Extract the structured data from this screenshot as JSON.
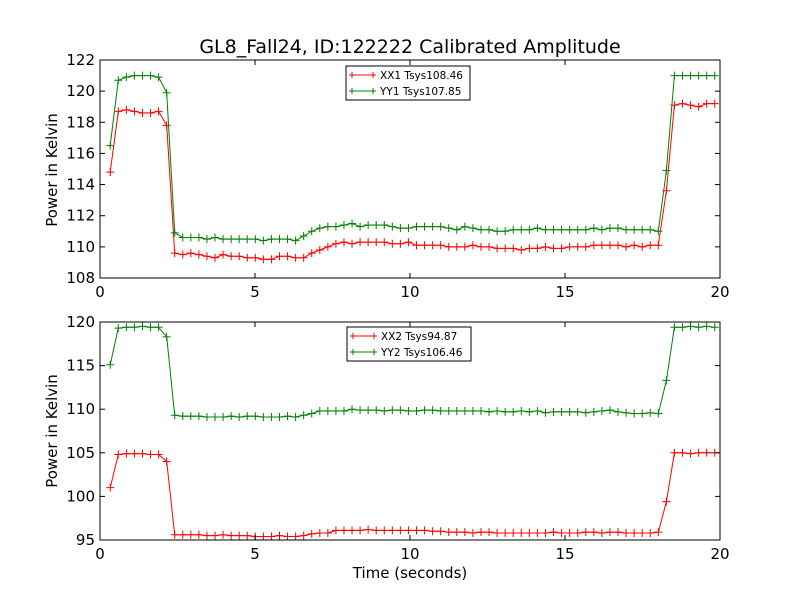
{
  "chart_data": [
    {
      "type": "line",
      "title": "GL8_Fall24, ID:122222 Calibrated Amplitude",
      "xlabel": "",
      "ylabel": "Power in Kelvin",
      "xlim": [
        0,
        20
      ],
      "ylim": [
        108,
        122
      ],
      "xticks": [
        "0",
        "5",
        "10",
        "15",
        "20"
      ],
      "yticks": [
        "108",
        "110",
        "112",
        "114",
        "116",
        "118",
        "120",
        "122"
      ],
      "legend_position": "upper center",
      "x": [
        0.33,
        0.59,
        0.85,
        1.11,
        1.37,
        1.63,
        1.89,
        2.15,
        2.41,
        2.67,
        2.93,
        3.19,
        3.45,
        3.71,
        3.97,
        4.23,
        4.49,
        4.75,
        5.01,
        5.27,
        5.53,
        5.79,
        6.05,
        6.31,
        6.57,
        6.83,
        7.09,
        7.35,
        7.61,
        7.87,
        8.13,
        8.39,
        8.65,
        8.91,
        9.17,
        9.43,
        9.69,
        9.95,
        10.21,
        10.47,
        10.73,
        10.99,
        11.25,
        11.51,
        11.77,
        12.03,
        12.29,
        12.55,
        12.81,
        13.07,
        13.33,
        13.59,
        13.85,
        14.11,
        14.37,
        14.63,
        14.89,
        15.15,
        15.41,
        15.67,
        15.93,
        16.19,
        16.45,
        16.71,
        16.97,
        17.23,
        17.49,
        17.75,
        18.01,
        18.27,
        18.53,
        18.79,
        19.05,
        19.31,
        19.57,
        19.83
      ],
      "series": [
        {
          "name": "XX1 Tsys108.46",
          "color": "#ff0000",
          "values": [
            114.8,
            118.7,
            118.8,
            118.7,
            118.6,
            118.6,
            118.7,
            117.8,
            109.6,
            109.5,
            109.6,
            109.5,
            109.4,
            109.3,
            109.5,
            109.4,
            109.4,
            109.3,
            109.3,
            109.2,
            109.2,
            109.4,
            109.4,
            109.3,
            109.3,
            109.6,
            109.8,
            110.0,
            110.2,
            110.3,
            110.2,
            110.3,
            110.3,
            110.3,
            110.3,
            110.2,
            110.2,
            110.3,
            110.1,
            110.1,
            110.1,
            110.1,
            110.0,
            110.0,
            110.0,
            110.1,
            110.0,
            110.0,
            109.9,
            109.9,
            109.9,
            109.8,
            109.9,
            109.9,
            110.0,
            109.9,
            109.9,
            110.0,
            110.0,
            110.0,
            110.1,
            110.1,
            110.1,
            110.1,
            110.0,
            110.1,
            110.0,
            110.1,
            110.1,
            113.6,
            119.1,
            119.2,
            119.1,
            119.0,
            119.2,
            119.2
          ]
        },
        {
          "name": "YY1 Tsys107.85",
          "color": "#008000",
          "values": [
            116.5,
            120.7,
            120.9,
            121.0,
            121.0,
            121.0,
            120.9,
            119.9,
            110.9,
            110.6,
            110.6,
            110.6,
            110.5,
            110.6,
            110.5,
            110.5,
            110.5,
            110.5,
            110.5,
            110.4,
            110.5,
            110.5,
            110.5,
            110.4,
            110.7,
            111.0,
            111.2,
            111.3,
            111.3,
            111.4,
            111.5,
            111.3,
            111.4,
            111.4,
            111.4,
            111.3,
            111.2,
            111.2,
            111.3,
            111.3,
            111.3,
            111.3,
            111.2,
            111.1,
            111.3,
            111.2,
            111.1,
            111.1,
            111.0,
            111.0,
            111.1,
            111.1,
            111.1,
            111.2,
            111.1,
            111.1,
            111.1,
            111.1,
            111.1,
            111.1,
            111.2,
            111.1,
            111.2,
            111.2,
            111.1,
            111.1,
            111.1,
            111.1,
            111.0,
            114.9,
            121.0,
            121.0,
            121.0,
            121.0,
            121.0,
            121.0
          ]
        }
      ]
    },
    {
      "type": "line",
      "title": "",
      "xlabel": "Time (seconds)",
      "ylabel": "Power in Kelvin",
      "xlim": [
        0,
        20
      ],
      "ylim": [
        95,
        120
      ],
      "xticks": [
        "0",
        "5",
        "10",
        "15",
        "20"
      ],
      "yticks": [
        "95",
        "100",
        "105",
        "110",
        "115",
        "120"
      ],
      "legend_position": "upper center",
      "x": [
        0.33,
        0.59,
        0.85,
        1.11,
        1.37,
        1.63,
        1.89,
        2.15,
        2.41,
        2.67,
        2.93,
        3.19,
        3.45,
        3.71,
        3.97,
        4.23,
        4.49,
        4.75,
        5.01,
        5.27,
        5.53,
        5.79,
        6.05,
        6.31,
        6.57,
        6.83,
        7.09,
        7.35,
        7.61,
        7.87,
        8.13,
        8.39,
        8.65,
        8.91,
        9.17,
        9.43,
        9.69,
        9.95,
        10.21,
        10.47,
        10.73,
        10.99,
        11.25,
        11.51,
        11.77,
        12.03,
        12.29,
        12.55,
        12.81,
        13.07,
        13.33,
        13.59,
        13.85,
        14.11,
        14.37,
        14.63,
        14.89,
        15.15,
        15.41,
        15.67,
        15.93,
        16.19,
        16.45,
        16.71,
        16.97,
        17.23,
        17.49,
        17.75,
        18.01,
        18.27,
        18.53,
        18.79,
        19.05,
        19.31,
        19.57,
        19.83
      ],
      "series": [
        {
          "name": "XX2 Tsys94.87",
          "color": "#ff0000",
          "values": [
            101.0,
            104.8,
            104.9,
            104.9,
            104.9,
            104.8,
            104.8,
            104.0,
            95.6,
            95.6,
            95.6,
            95.6,
            95.5,
            95.5,
            95.6,
            95.5,
            95.5,
            95.5,
            95.4,
            95.4,
            95.4,
            95.5,
            95.4,
            95.4,
            95.5,
            95.7,
            95.8,
            95.8,
            96.1,
            96.1,
            96.1,
            96.1,
            96.2,
            96.1,
            96.1,
            96.1,
            96.1,
            96.1,
            96.1,
            96.1,
            96.0,
            96.0,
            95.9,
            95.9,
            95.9,
            95.8,
            95.9,
            95.9,
            95.8,
            95.8,
            95.8,
            95.8,
            95.8,
            95.8,
            95.8,
            95.9,
            95.8,
            95.8,
            95.8,
            95.9,
            95.9,
            95.8,
            95.9,
            95.9,
            95.8,
            95.8,
            95.8,
            95.8,
            95.9,
            99.4,
            105.0,
            105.0,
            104.9,
            105.0,
            105.0,
            105.0
          ]
        },
        {
          "name": "YY2 Tsys106.46",
          "color": "#008000",
          "values": [
            115.1,
            119.3,
            119.4,
            119.4,
            119.5,
            119.4,
            119.4,
            118.3,
            109.3,
            109.2,
            109.2,
            109.2,
            109.1,
            109.1,
            109.1,
            109.2,
            109.1,
            109.2,
            109.2,
            109.1,
            109.1,
            109.1,
            109.2,
            109.1,
            109.3,
            109.5,
            109.8,
            109.8,
            109.8,
            109.8,
            110.0,
            109.9,
            109.9,
            109.9,
            109.8,
            109.9,
            109.9,
            109.8,
            109.8,
            109.9,
            109.9,
            109.8,
            109.8,
            109.8,
            109.8,
            109.8,
            109.8,
            109.7,
            109.8,
            109.7,
            109.7,
            109.8,
            109.7,
            109.8,
            109.6,
            109.7,
            109.7,
            109.7,
            109.7,
            109.6,
            109.7,
            109.8,
            109.9,
            109.7,
            109.6,
            109.5,
            109.5,
            109.6,
            109.5,
            113.3,
            119.4,
            119.4,
            119.5,
            119.4,
            119.5,
            119.4
          ]
        }
      ]
    }
  ]
}
